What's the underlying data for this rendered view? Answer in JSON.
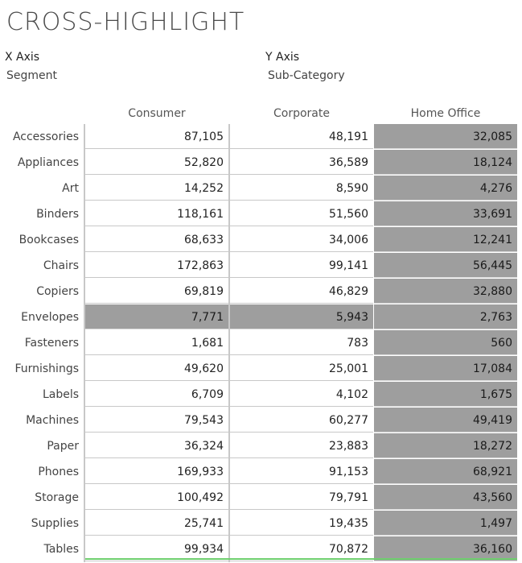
{
  "title": "CROSS-HIGHLIGHT",
  "x_axis": {
    "label": "X Axis",
    "value": "Segment"
  },
  "y_axis": {
    "label": "Y Axis",
    "value": "Sub-Category"
  },
  "columns": [
    "Consumer",
    "Corporate",
    "Home Office"
  ],
  "highlight_color": "#9e9e9e",
  "highlighted_column": "Home Office",
  "highlighted_row": "Envelopes",
  "rows": [
    {
      "label": "Accessories",
      "values": [
        "87,105",
        "48,191",
        "32,085"
      ]
    },
    {
      "label": "Appliances",
      "values": [
        "52,820",
        "36,589",
        "18,124"
      ]
    },
    {
      "label": "Art",
      "values": [
        "14,252",
        "8,590",
        "4,276"
      ]
    },
    {
      "label": "Binders",
      "values": [
        "118,161",
        "51,560",
        "33,691"
      ]
    },
    {
      "label": "Bookcases",
      "values": [
        "68,633",
        "34,006",
        "12,241"
      ]
    },
    {
      "label": "Chairs",
      "values": [
        "172,863",
        "99,141",
        "56,445"
      ]
    },
    {
      "label": "Copiers",
      "values": [
        "69,819",
        "46,829",
        "32,880"
      ]
    },
    {
      "label": "Envelopes",
      "values": [
        "7,771",
        "5,943",
        "2,763"
      ]
    },
    {
      "label": "Fasteners",
      "values": [
        "1,681",
        "783",
        "560"
      ]
    },
    {
      "label": "Furnishings",
      "values": [
        "49,620",
        "25,001",
        "17,084"
      ]
    },
    {
      "label": "Labels",
      "values": [
        "6,709",
        "4,102",
        "1,675"
      ]
    },
    {
      "label": "Machines",
      "values": [
        "79,543",
        "60,277",
        "49,419"
      ]
    },
    {
      "label": "Paper",
      "values": [
        "36,324",
        "23,883",
        "18,272"
      ]
    },
    {
      "label": "Phones",
      "values": [
        "169,933",
        "91,153",
        "68,921"
      ]
    },
    {
      "label": "Storage",
      "values": [
        "100,492",
        "79,791",
        "43,560"
      ]
    },
    {
      "label": "Supplies",
      "values": [
        "25,741",
        "19,435",
        "1,497"
      ]
    },
    {
      "label": "Tables",
      "values": [
        "99,934",
        "70,872",
        "36,160"
      ]
    }
  ]
}
